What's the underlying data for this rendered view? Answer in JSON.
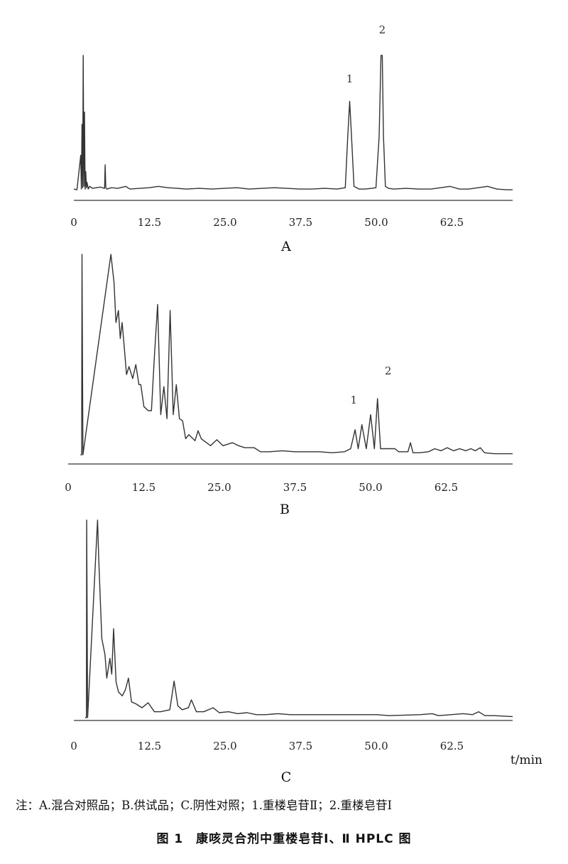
{
  "chart_data": [
    {
      "type": "line",
      "panel_label": "A",
      "xlim": [
        0,
        70
      ],
      "x_ticks": [
        "0",
        "12.5",
        "25.0",
        "37.5",
        "50.0",
        "62.5"
      ],
      "peak_labels": [
        {
          "text": "1",
          "x": 44.0
        },
        {
          "text": "2",
          "x": 49.2
        }
      ],
      "y_shown": false,
      "series": [
        {
          "x": [
            0,
            0.5,
            1.1,
            1.2,
            1.3,
            1.4,
            1.5,
            1.6,
            1.7,
            1.8,
            1.9,
            2.0,
            2.1,
            2.3,
            2.5,
            3.0,
            4.2,
            4.9,
            5.0,
            5.1,
            5.3,
            6.0,
            7.0,
            8.3,
            8.6,
            9.0,
            10.5,
            12.0,
            13.5,
            15.0,
            16.5,
            18.0,
            20.0,
            22.0,
            24.0,
            26.0,
            28.0,
            30.0,
            32.0,
            34.0,
            36.0,
            38.0,
            40.0,
            42.0,
            43.3,
            43.7,
            44.0,
            44.3,
            44.7,
            45.5,
            46.5,
            47.5,
            48.2,
            48.7,
            49.0,
            49.2,
            49.4,
            49.7,
            50.2,
            51.0,
            53.0,
            55.0,
            57.0,
            58.5,
            60.0,
            61.5,
            63.0,
            64.5,
            66.0,
            67.5,
            69.0,
            70.0
          ],
          "y": [
            1.0,
            0.5,
            26.0,
            1.0,
            49.0,
            2.0,
            100.0,
            3.0,
            58.0,
            1.0,
            14.0,
            2.0,
            6.0,
            1.0,
            3.0,
            1.5,
            2.5,
            1.5,
            19.0,
            2.0,
            1.0,
            2.0,
            1.5,
            3.0,
            2.0,
            1.0,
            1.5,
            2.0,
            3.0,
            2.0,
            1.5,
            1.0,
            1.5,
            1.0,
            1.5,
            2.0,
            1.0,
            1.5,
            2.0,
            1.5,
            1.0,
            1.0,
            1.5,
            1.0,
            2.0,
            40.0,
            66.0,
            40.0,
            3.0,
            1.0,
            1.0,
            1.5,
            2.0,
            40.0,
            100.0,
            100.0,
            40.0,
            3.0,
            1.5,
            1.0,
            1.5,
            1.0,
            1.0,
            2.0,
            3.0,
            1.0,
            1.0,
            2.0,
            3.0,
            1.0,
            0.5,
            0.5
          ]
        }
      ]
    },
    {
      "type": "line",
      "panel_label": "B",
      "xlim": [
        0,
        70
      ],
      "x_ticks": [
        "0",
        "12.5",
        "25.0",
        "37.5",
        "50.0",
        "62.5"
      ],
      "peak_labels": [
        {
          "text": "1",
          "x": 44.5
        },
        {
          "text": "2",
          "x": 50.0
        }
      ],
      "y_shown": false,
      "series": [
        {
          "x": [
            0.6,
            0.8,
            0.85,
            1.0,
            5.5,
            6.0,
            6.3,
            6.7,
            7.0,
            7.3,
            7.6,
            8.0,
            8.4,
            9.0,
            9.5,
            10.0,
            10.3,
            10.8,
            11.5,
            12.0,
            12.5,
            13.0,
            13.5,
            14.0,
            14.5,
            15.0,
            15.5,
            16.0,
            16.5,
            17.0,
            17.5,
            18.0,
            19.0,
            19.5,
            20.0,
            21.5,
            22.5,
            23.5,
            25.0,
            26.0,
            27.0,
            28.5,
            29.5,
            31.0,
            33.0,
            35.0,
            37.0,
            39.0,
            41.0,
            43.0,
            44.0,
            44.7,
            45.2,
            45.8,
            46.5,
            47.2,
            47.8,
            48.3,
            48.8,
            49.2,
            49.7,
            50.2,
            50.6,
            51.1,
            51.7,
            52.5,
            53.2,
            53.6,
            54.0,
            55.0,
            56.5,
            57.5,
            58.5,
            59.5,
            60.5,
            61.5,
            62.5,
            63.3,
            64.0,
            64.8,
            65.5,
            67.0,
            70.0
          ],
          "y": [
            0,
            0,
            100.0,
            0,
            100.0,
            86.0,
            66.0,
            72.0,
            58.0,
            66.0,
            55.0,
            40.0,
            44.0,
            38.0,
            45.0,
            35.0,
            35.0,
            24.0,
            22.0,
            22.0,
            50.0,
            75.0,
            20.0,
            34.0,
            18.0,
            72.0,
            20.0,
            35.0,
            18.0,
            17.0,
            8.0,
            10.0,
            7.0,
            12.0,
            8.0,
            4.5,
            7.5,
            4.5,
            6.0,
            4.5,
            3.5,
            3.5,
            1.5,
            1.5,
            2.0,
            1.5,
            1.5,
            1.5,
            1.0,
            1.5,
            3.0,
            12.5,
            3.0,
            15.0,
            3.0,
            20.0,
            3.0,
            28.0,
            3.0,
            3.0,
            3.0,
            3.0,
            3.0,
            3.0,
            1.5,
            1.5,
            1.5,
            6.0,
            1.0,
            1.0,
            1.5,
            3.0,
            2.0,
            3.5,
            2.0,
            3.0,
            2.0,
            3.0,
            2.0,
            3.5,
            1.0,
            0.5,
            0.5
          ]
        }
      ]
    },
    {
      "type": "line",
      "panel_label": "C",
      "xlim": [
        0,
        70
      ],
      "x_ticks": [
        "0",
        "12.5",
        "25.0",
        "37.5",
        "50.0",
        "62.5"
      ],
      "unit_label": "t/min",
      "y_shown": false,
      "series": [
        {
          "x": [
            0.8,
            1.0,
            1.05,
            1.2,
            2.8,
            3.0,
            3.5,
            4.0,
            4.3,
            4.8,
            5.1,
            5.4,
            5.8,
            6.2,
            6.8,
            7.3,
            7.8,
            8.3,
            9.0,
            10.0,
            11.0,
            12.0,
            13.0,
            14.5,
            15.2,
            15.8,
            16.5,
            17.5,
            18.0,
            18.8,
            20.0,
            21.5,
            22.5,
            24.0,
            25.5,
            27.0,
            28.5,
            30.0,
            32.0,
            34.0,
            36.0,
            40.0,
            45.0,
            48.0,
            50.0,
            55.0,
            57.0,
            58.0,
            60.0,
            62.0,
            63.5,
            64.5,
            65.5,
            67.0,
            70.0
          ],
          "y": [
            0,
            0,
            100.0,
            0,
            100.0,
            80.0,
            40.0,
            32.0,
            20.0,
            30.0,
            22.0,
            45.0,
            18.0,
            13.0,
            11.0,
            14.0,
            20.0,
            8.0,
            7.0,
            5.0,
            7.5,
            3.0,
            3.0,
            4.0,
            18.5,
            6.0,
            4.0,
            5.0,
            9.0,
            3.0,
            3.0,
            5.0,
            2.5,
            3.0,
            2.0,
            2.5,
            1.5,
            1.5,
            2.0,
            1.5,
            1.5,
            1.5,
            1.5,
            1.5,
            1.0,
            1.5,
            2.0,
            1.0,
            1.5,
            2.0,
            1.5,
            3.0,
            1.0,
            1.0,
            0.5
          ]
        }
      ]
    }
  ],
  "note": "注：A.混合对照品；B.供试品；C.阴性对照；1.重楼皂苷Ⅱ；2.重楼皂苷Ⅰ",
  "caption": "图 1　康咳灵合剂中重楼皂苷Ⅰ、Ⅱ HPLC 图"
}
